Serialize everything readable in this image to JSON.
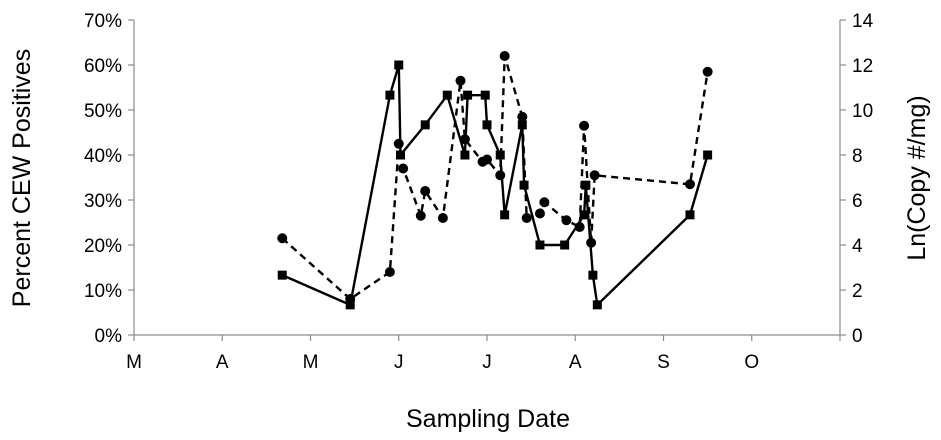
{
  "chart_data": {
    "type": "line",
    "xlabel": "Sampling Date",
    "ylabel_left": "Percent CEW Positives",
    "ylabel_right": "Ln(Copy #/mg)",
    "x_axis": {
      "unit": "month-position",
      "range": [
        0,
        8
      ],
      "tick_labels": [
        "M",
        "A",
        "M",
        "J",
        "J",
        "A",
        "S",
        "O"
      ]
    },
    "y_left": {
      "range": [
        0,
        70
      ],
      "ticks": [
        "0%",
        "10%",
        "20%",
        "30%",
        "40%",
        "50%",
        "60%",
        "70%"
      ]
    },
    "y_right": {
      "range": [
        0,
        14
      ],
      "ticks": [
        "0",
        "2",
        "4",
        "6",
        "8",
        "10",
        "12",
        "14"
      ]
    },
    "grid": false,
    "legend": "none",
    "series": [
      {
        "axis": "left",
        "line": "solid",
        "marker": "square",
        "color": "#000000",
        "points": [
          [
            1.68,
            13.3
          ],
          [
            2.45,
            6.7
          ],
          [
            2.9,
            53.3
          ],
          [
            3.0,
            60.0
          ],
          [
            3.02,
            40.0
          ],
          [
            3.3,
            46.7
          ],
          [
            3.55,
            53.3
          ],
          [
            3.75,
            40.0
          ],
          [
            3.78,
            53.3
          ],
          [
            3.98,
            53.3
          ],
          [
            4.0,
            46.7
          ],
          [
            4.15,
            40.0
          ],
          [
            4.2,
            26.7
          ],
          [
            4.4,
            46.7
          ],
          [
            4.42,
            33.3
          ],
          [
            4.6,
            20.0
          ],
          [
            4.88,
            20.0
          ],
          [
            5.1,
            26.7
          ],
          [
            5.12,
            33.3
          ],
          [
            5.2,
            13.3
          ],
          [
            5.25,
            6.7
          ],
          [
            6.3,
            26.7
          ],
          [
            6.5,
            40.0
          ]
        ]
      },
      {
        "axis": "right",
        "line": "dashed",
        "marker": "circle",
        "color": "#000000",
        "points": [
          [
            1.68,
            4.3
          ],
          [
            2.45,
            1.6
          ],
          [
            2.9,
            2.8
          ],
          [
            3.0,
            8.5
          ],
          [
            3.05,
            7.4
          ],
          [
            3.25,
            5.3
          ],
          [
            3.3,
            6.4
          ],
          [
            3.5,
            5.2
          ],
          [
            3.7,
            11.3
          ],
          [
            3.75,
            8.7
          ],
          [
            3.95,
            7.7
          ],
          [
            4.0,
            7.8
          ],
          [
            4.15,
            7.1
          ],
          [
            4.2,
            12.4
          ],
          [
            4.4,
            9.7
          ],
          [
            4.45,
            5.2
          ],
          [
            4.6,
            5.4
          ],
          [
            4.65,
            5.9
          ],
          [
            4.9,
            5.1
          ],
          [
            5.05,
            4.8
          ],
          [
            5.1,
            9.3
          ],
          [
            5.18,
            4.1
          ],
          [
            5.22,
            7.1
          ],
          [
            6.3,
            6.7
          ],
          [
            6.5,
            11.7
          ]
        ]
      }
    ]
  }
}
